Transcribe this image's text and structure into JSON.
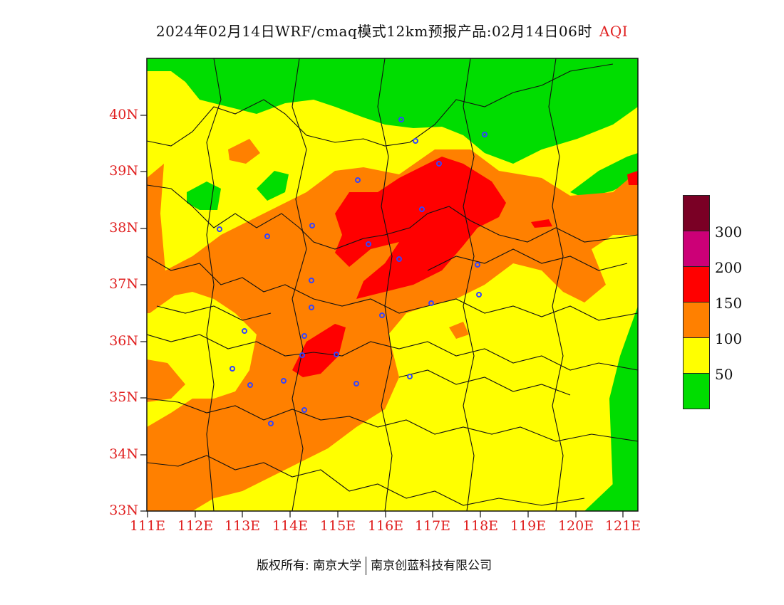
{
  "title": {
    "main": "2024年02月14日WRF/cmaq模式12km预报产品:02月14日06时",
    "product": "AQI"
  },
  "map": {
    "lat_ticks": [
      "40N",
      "39N",
      "38N",
      "37N",
      "36N",
      "35N",
      "34N",
      "33N"
    ],
    "lon_ticks": [
      "111E",
      "112E",
      "113E",
      "114E",
      "115E",
      "116E",
      "117E",
      "118E",
      "119E",
      "120E",
      "121E"
    ],
    "extent": {
      "lon": [
        111,
        121.3
      ],
      "lat": [
        33,
        41
      ]
    },
    "colors": {
      "0-50": "#00dd00",
      "50-100": "#ffff00",
      "100-150": "#ff8000",
      "150-200": "#ff0000",
      "200-300": "#cc0077",
      "300+": "#7a0025"
    },
    "city_marker_color": "#3344ff"
  },
  "legend": {
    "labels": [
      "300",
      "200",
      "150",
      "100",
      "50"
    ],
    "colors": [
      "#7a0025",
      "#cc0077",
      "#ff0000",
      "#ff8000",
      "#ffff00",
      "#00dd00"
    ]
  },
  "footer": {
    "copyright": "版权所有: 南京大学",
    "company": "南京创蓝科技有限公司"
  }
}
